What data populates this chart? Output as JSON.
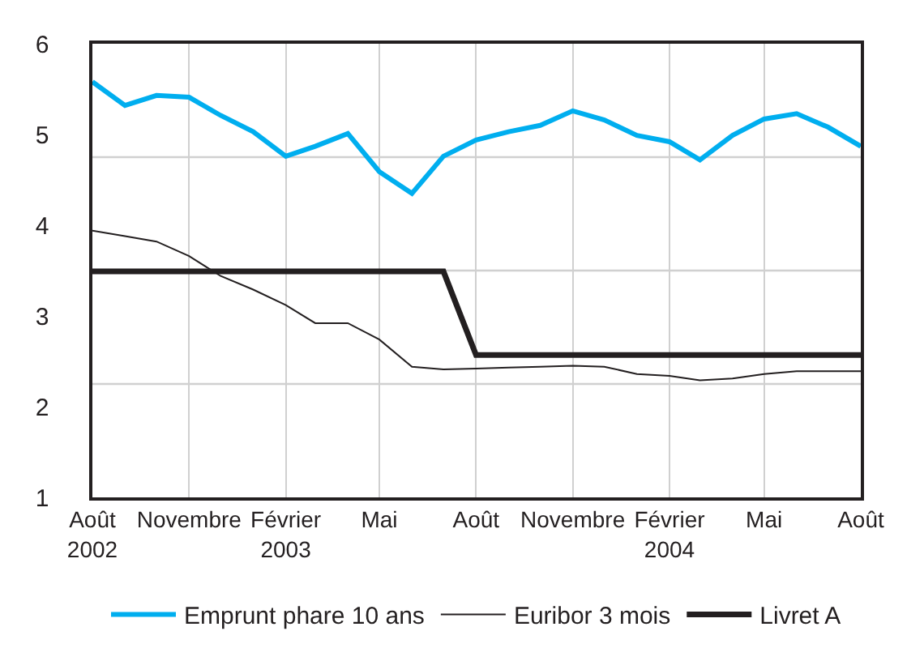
{
  "chart_data": {
    "type": "line",
    "x": [
      "2002-08",
      "2002-09",
      "2002-10",
      "2002-11",
      "2002-12",
      "2003-01",
      "2003-02",
      "2003-03",
      "2003-04",
      "2003-05",
      "2003-06",
      "2003-07",
      "2003-08",
      "2003-09",
      "2003-10",
      "2003-11",
      "2003-12",
      "2004-01",
      "2004-02",
      "2004-03",
      "2004-04",
      "2004-05",
      "2004-06",
      "2004-07",
      "2004-08"
    ],
    "series": [
      {
        "name": "Emprunt phare 10 ans",
        "color": "#00aeef",
        "values": [
          5.58,
          5.32,
          5.43,
          5.41,
          5.21,
          5.03,
          4.76,
          4.87,
          5.01,
          4.59,
          4.35,
          4.76,
          4.94,
          5.03,
          5.1,
          5.26,
          5.16,
          4.99,
          4.92,
          4.72,
          4.99,
          5.17,
          5.23,
          5.08,
          4.87
        ]
      },
      {
        "name": "Euribor 3 mois",
        "color": "#231f20",
        "values": [
          3.94,
          3.88,
          3.82,
          3.66,
          3.44,
          3.29,
          3.12,
          2.92,
          2.92,
          2.74,
          2.44,
          2.41,
          2.42,
          2.43,
          2.44,
          2.45,
          2.44,
          2.36,
          2.34,
          2.29,
          2.31,
          2.36,
          2.39,
          2.39,
          2.39
        ]
      },
      {
        "name": "Livret A",
        "color": "#231f20",
        "values": [
          3.49,
          3.49,
          3.49,
          3.49,
          3.49,
          3.49,
          3.49,
          3.49,
          3.49,
          3.49,
          3.49,
          3.49,
          2.57,
          2.57,
          2.57,
          2.57,
          2.57,
          2.57,
          2.57,
          2.57,
          2.57,
          2.57,
          2.57,
          2.57,
          2.57
        ]
      }
    ],
    "xlim": [
      "2002-08",
      "2004-08"
    ],
    "xticks": [
      {
        "value": "2002-08",
        "label": "Août\n2002"
      },
      {
        "value": "2002-11",
        "label": "Novembre"
      },
      {
        "value": "2003-02",
        "label": "Février\n2003"
      },
      {
        "value": "2003-05",
        "label": "Mai"
      },
      {
        "value": "2003-08",
        "label": "Août"
      },
      {
        "value": "2003-11",
        "label": "Novembre"
      },
      {
        "value": "2004-02",
        "label": "Février\n2004"
      },
      {
        "value": "2004-05",
        "label": "Mai"
      },
      {
        "value": "2004-08",
        "label": "Août"
      }
    ],
    "ylim": [
      1,
      6
    ],
    "yticks": [
      1,
      2,
      3,
      4,
      5,
      6,
      {
        "value": 2.25,
        "label": null
      },
      {
        "value": 3.5,
        "label": null
      },
      {
        "value": 4.75,
        "label": null
      }
    ],
    "grid": true,
    "legend": "bottom",
    "marker": "none",
    "line_style": "solid"
  }
}
